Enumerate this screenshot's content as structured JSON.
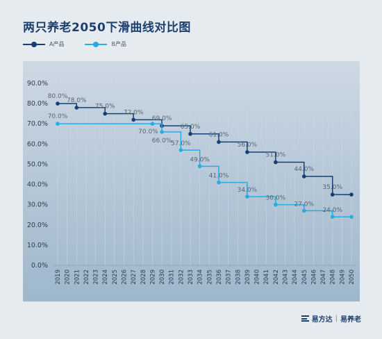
{
  "title": "两只养老2050下滑曲线对比图",
  "colors": {
    "series_a": "#173f74",
    "series_b": "#29abe2",
    "grid": "#c7d3df",
    "axis_text": "#2f3b48",
    "label_text": "#5b6470"
  },
  "footer": {
    "brand": "易方达",
    "separator": "|",
    "product": "易养老",
    "icon": "brand-logo-icon"
  },
  "chart_data": {
    "type": "line",
    "title": "两只养老2050下滑曲线对比图",
    "x": [
      2019,
      2020,
      2021,
      2022,
      2023,
      2024,
      2025,
      2026,
      2027,
      2028,
      2029,
      2030,
      2031,
      2032,
      2033,
      2034,
      2035,
      2036,
      2037,
      2038,
      2039,
      2040,
      2041,
      2042,
      2043,
      2044,
      2045,
      2046,
      2047,
      2048,
      2049,
      2050
    ],
    "y_ticks": [
      "0.0%",
      "10.0%",
      "20.0%",
      "30.0%",
      "40.0%",
      "50.0%",
      "60.0%",
      "70.0%",
      "80.0%",
      "90.0%"
    ],
    "ylim": [
      0,
      90
    ],
    "grid": "vertical",
    "legend_position": "top-left",
    "step": "post",
    "series": [
      {
        "name": "A产品",
        "points": [
          {
            "x": 2019,
            "y": 80,
            "label": "80.0%"
          },
          {
            "x": 2021,
            "y": 78,
            "label": "78.0%"
          },
          {
            "x": 2024,
            "y": 75,
            "label": "75.0%"
          },
          {
            "x": 2027,
            "y": 72,
            "label": "72.0%"
          },
          {
            "x": 2030,
            "y": 69,
            "label": "69.0%"
          },
          {
            "x": 2033,
            "y": 65,
            "label": "65.0%"
          },
          {
            "x": 2036,
            "y": 61,
            "label": "61.0%"
          },
          {
            "x": 2039,
            "y": 56,
            "label": "56.0%"
          },
          {
            "x": 2042,
            "y": 51,
            "label": "51.0%"
          },
          {
            "x": 2045,
            "y": 44,
            "label": "44.0%"
          },
          {
            "x": 2048,
            "y": 35,
            "label": "35.0%"
          },
          {
            "x": 2050,
            "y": 35,
            "label": ""
          }
        ]
      },
      {
        "name": "B产品",
        "points": [
          {
            "x": 2019,
            "y": 70,
            "label": "70.0%"
          },
          {
            "x": 2029,
            "y": 70,
            "label": "70.0%"
          },
          {
            "x": 2030,
            "y": 66,
            "label": "66.0%"
          },
          {
            "x": 2032,
            "y": 57,
            "label": "57.0%"
          },
          {
            "x": 2034,
            "y": 49,
            "label": "49.0%"
          },
          {
            "x": 2036,
            "y": 41,
            "label": "41.0%"
          },
          {
            "x": 2039,
            "y": 34,
            "label": "34.0%"
          },
          {
            "x": 2042,
            "y": 30,
            "label": "30.0%"
          },
          {
            "x": 2045,
            "y": 27,
            "label": "27.0%"
          },
          {
            "x": 2048,
            "y": 24,
            "label": "24.0%"
          },
          {
            "x": 2050,
            "y": 24,
            "label": ""
          }
        ]
      }
    ]
  }
}
